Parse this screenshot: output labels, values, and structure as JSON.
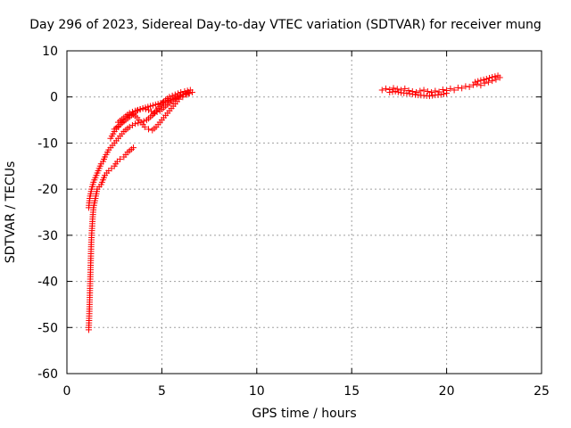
{
  "chart_data": {
    "type": "scatter",
    "title": "Day 296 of 2023, Sidereal Day-to-day VTEC variation (SDTVAR) for receiver mung",
    "xlabel": "GPS time / hours",
    "ylabel": "SDTVAR / TECUs",
    "xlim": [
      0,
      25
    ],
    "ylim": [
      -60,
      10
    ],
    "xticks": [
      "0",
      "5",
      "10",
      "15",
      "20",
      "25"
    ],
    "yticks": [
      "10",
      "0",
      "-10",
      "-20",
      "-30",
      "-40",
      "-50",
      "-60"
    ],
    "grid": true,
    "marker": "+",
    "color": "#ff0000",
    "series": [
      {
        "name": "SDTVAR",
        "segments": [
          {
            "x": [
              1.15,
              1.18,
              1.2,
              1.22,
              1.24,
              1.26,
              1.28,
              1.3,
              1.33,
              1.36,
              1.4,
              1.45,
              1.5,
              1.55,
              1.6,
              1.7,
              1.8,
              1.9,
              2.0,
              2.1,
              2.2,
              2.35,
              2.5,
              2.65,
              2.8,
              3.0,
              3.2,
              3.5
            ],
            "y": [
              -50.5,
              -47,
              -44,
              -41,
              -38,
              -35,
              -32,
              -30,
              -28,
              -26,
              -24,
              -23,
              -22,
              -21,
              -20,
              -19.5,
              -19,
              -18,
              -17,
              -16.5,
              -16,
              -15.5,
              -15,
              -14,
              -13.5,
              -13,
              -12,
              -11
            ]
          },
          {
            "x": [
              1.15,
              1.2,
              1.25,
              1.3,
              1.4,
              1.5,
              1.6,
              1.7,
              1.8,
              1.9,
              2.0,
              2.2,
              2.4,
              2.6,
              2.8,
              3.0,
              3.3,
              3.6,
              3.9,
              4.2,
              4.5,
              4.8,
              5.1,
              5.4,
              5.7,
              6.0,
              6.2,
              6.5
            ],
            "y": [
              -24,
              -22,
              -21,
              -20,
              -18.5,
              -17.5,
              -16.5,
              -15.5,
              -14.5,
              -14,
              -13,
              -11.5,
              -10.5,
              -9.5,
              -8.5,
              -7.5,
              -6.5,
              -5.8,
              -5.5,
              -5,
              -4,
              -2.5,
              -1,
              0,
              0.5,
              1,
              1.2,
              1.5
            ]
          },
          {
            "x": [
              2.3,
              2.5,
              2.7,
              2.9,
              3.1,
              3.3,
              3.5,
              3.7,
              3.9,
              4.1,
              4.3,
              4.5,
              4.7,
              4.9,
              5.1,
              5.3,
              5.5,
              5.7,
              5.9,
              6.1,
              6.3,
              6.6
            ],
            "y": [
              -9,
              -7.5,
              -6.5,
              -5.5,
              -4.5,
              -4,
              -3.8,
              -4.5,
              -5.5,
              -6.5,
              -7,
              -7.2,
              -6.5,
              -5.5,
              -4.5,
              -3.5,
              -2.5,
              -1.5,
              -0.5,
              0,
              0.5,
              1
            ]
          },
          {
            "x": [
              2.5,
              2.8,
              3.1,
              3.4,
              3.7,
              4.0,
              4.3,
              4.6,
              4.9,
              5.2,
              5.5,
              5.8,
              6.1,
              6.4
            ],
            "y": [
              -7,
              -6,
              -5,
              -4,
              -3,
              -2.5,
              -2.8,
              -3.5,
              -3,
              -2,
              -1,
              0,
              0.5,
              0.8
            ]
          },
          {
            "x": [
              2.7,
              3.0,
              3.3,
              3.6,
              4.0,
              4.4,
              4.8,
              5.2,
              5.6,
              6.0,
              6.4
            ],
            "y": [
              -5.5,
              -4.5,
              -3.5,
              -3,
              -2.5,
              -2,
              -1.5,
              -1,
              -0.5,
              0.3,
              1
            ]
          },
          {
            "x": [
              16.6,
              16.8,
              17.0,
              17.2,
              17.4,
              17.6,
              17.8,
              18.0,
              18.2,
              18.4,
              18.6,
              18.8,
              19.0,
              19.2,
              19.4,
              19.6,
              19.8,
              20.0,
              20.2,
              20.4,
              20.6,
              20.8,
              21.0,
              21.2,
              21.4,
              21.6,
              21.8,
              22.0,
              22.2,
              22.4,
              22.6,
              22.8
            ],
            "y": [
              1.5,
              1.8,
              1.6,
              1.9,
              1.7,
              1.5,
              1.8,
              1.4,
              1.2,
              1.0,
              1.3,
              1.5,
              1.2,
              1.0,
              1.3,
              1.1,
              1.6,
              1.4,
              1.8,
              1.5,
              2.0,
              1.9,
              2.3,
              2.2,
              2.6,
              2.8,
              2.5,
              3.0,
              3.2,
              3.5,
              3.8,
              4.2
            ]
          },
          {
            "x": [
              17.0,
              17.3,
              17.6,
              17.9,
              18.2,
              18.5,
              18.8,
              19.1,
              19.4,
              19.7,
              20.0
            ],
            "y": [
              1.0,
              1.2,
              0.9,
              0.8,
              0.6,
              0.4,
              0.3,
              0.2,
              0.4,
              0.5,
              0.8
            ]
          },
          {
            "x": [
              21.5,
              21.8,
              22.1,
              22.4,
              22.7
            ],
            "y": [
              3.2,
              3.6,
              3.9,
              4.3,
              4.6
            ]
          }
        ]
      }
    ]
  }
}
